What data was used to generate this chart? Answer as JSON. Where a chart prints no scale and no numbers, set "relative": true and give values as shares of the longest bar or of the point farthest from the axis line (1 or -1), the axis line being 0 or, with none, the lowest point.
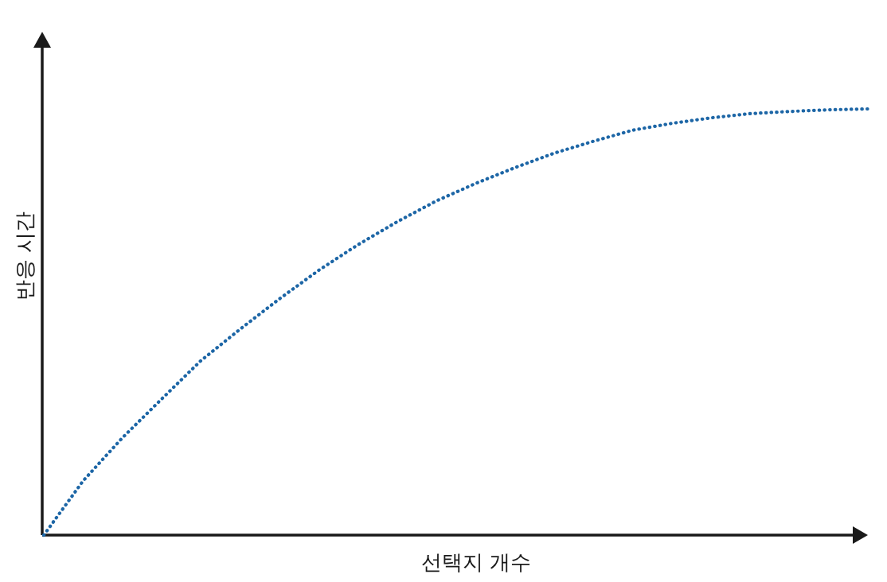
{
  "chart_data": {
    "type": "line",
    "xlabel": "선택지 개수",
    "ylabel": "반응 시간",
    "relative": true,
    "line_style": "dotted",
    "categories": [
      null,
      null,
      null,
      null,
      null,
      null,
      null,
      null,
      null,
      null,
      null,
      null,
      null,
      null,
      null,
      null,
      null,
      null,
      null,
      null,
      null,
      null
    ],
    "series": [
      {
        "color": "#1d66a6",
        "values": [
          0,
          0.127,
          0.228,
          0.319,
          0.409,
          0.483,
          0.554,
          0.621,
          0.681,
          0.735,
          0.784,
          0.825,
          0.862,
          0.896,
          0.924,
          0.95,
          0.966,
          0.979,
          0.989,
          0.994,
          0.998,
          1
        ]
      }
    ]
  }
}
